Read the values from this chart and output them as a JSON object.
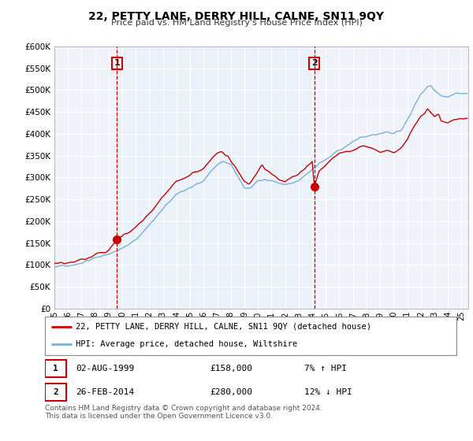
{
  "title": "22, PETTY LANE, DERRY HILL, CALNE, SN11 9QY",
  "subtitle": "Price paid vs. HM Land Registry's House Price Index (HPI)",
  "ylim": [
    0,
    600000
  ],
  "yticks": [
    0,
    50000,
    100000,
    150000,
    200000,
    250000,
    300000,
    350000,
    400000,
    450000,
    500000,
    550000,
    600000
  ],
  "background_color": "#ffffff",
  "grid_color": "#cccccc",
  "plot_bg_color": "#e8f0f8",
  "sale1": {
    "date_num": 1999.6,
    "price": 158000,
    "label": "1"
  },
  "sale2": {
    "date_num": 2014.15,
    "price": 280000,
    "label": "2"
  },
  "red_line_color": "#cc0000",
  "blue_line_color": "#7ab0d4",
  "legend_label_red": "22, PETTY LANE, DERRY HILL, CALNE, SN11 9QY (detached house)",
  "legend_label_blue": "HPI: Average price, detached house, Wiltshire",
  "info1_num": "1",
  "info1_date": "02-AUG-1999",
  "info1_price": "£158,000",
  "info1_hpi": "7% ↑ HPI",
  "info2_num": "2",
  "info2_date": "26-FEB-2014",
  "info2_price": "£280,000",
  "info2_hpi": "12% ↓ HPI",
  "footer": "Contains HM Land Registry data © Crown copyright and database right 2024.\nThis data is licensed under the Open Government Licence v3.0."
}
